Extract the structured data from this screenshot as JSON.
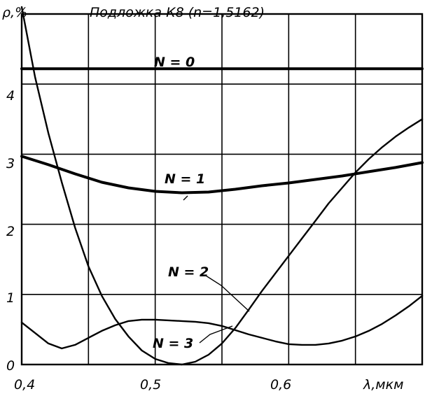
{
  "chart_data": {
    "type": "line",
    "title": "Подложка К8 (n=1,5162)",
    "ylabel": "ρ,%",
    "xlabel": "λ,мкм",
    "xlim": [
      0.4,
      0.7
    ],
    "ylim": [
      0,
      5
    ],
    "grid": true,
    "x_ticks": [
      {
        "value": 0.4,
        "label": "0,4"
      },
      {
        "value": 0.5,
        "label": "0,5"
      },
      {
        "value": 0.6,
        "label": "0,6"
      }
    ],
    "y_ticks": [
      {
        "value": 0,
        "label": "0"
      },
      {
        "value": 1,
        "label": "1"
      },
      {
        "value": 2,
        "label": "2"
      },
      {
        "value": 3,
        "label": "3"
      },
      {
        "value": 4,
        "label": "4"
      }
    ],
    "series": [
      {
        "name": "N = 0",
        "x": [
          0.4,
          0.45,
          0.5,
          0.55,
          0.6,
          0.65,
          0.7
        ],
        "y": [
          4.22,
          4.22,
          4.22,
          4.22,
          4.22,
          4.22,
          4.22
        ]
      },
      {
        "name": "N = 1",
        "x": [
          0.4,
          0.42,
          0.44,
          0.46,
          0.48,
          0.5,
          0.52,
          0.54,
          0.56,
          0.58,
          0.6,
          0.62,
          0.64,
          0.66,
          0.68,
          0.7
        ],
        "y": [
          2.97,
          2.85,
          2.72,
          2.6,
          2.52,
          2.47,
          2.45,
          2.46,
          2.5,
          2.55,
          2.59,
          2.64,
          2.69,
          2.75,
          2.81,
          2.88
        ]
      },
      {
        "name": "N = 2",
        "x": [
          0.4,
          0.41,
          0.42,
          0.43,
          0.44,
          0.45,
          0.46,
          0.47,
          0.48,
          0.49,
          0.5,
          0.51,
          0.52,
          0.53,
          0.54,
          0.55,
          0.56,
          0.57,
          0.58,
          0.59,
          0.6,
          0.61,
          0.62,
          0.63,
          0.64,
          0.65,
          0.66,
          0.67,
          0.68,
          0.69,
          0.7
        ],
        "y": [
          5.1,
          4.1,
          3.3,
          2.6,
          1.95,
          1.4,
          0.98,
          0.65,
          0.4,
          0.2,
          0.08,
          0.02,
          0.0,
          0.04,
          0.14,
          0.3,
          0.52,
          0.78,
          1.05,
          1.3,
          1.55,
          1.8,
          2.05,
          2.3,
          2.52,
          2.74,
          2.93,
          3.1,
          3.25,
          3.38,
          3.5
        ]
      },
      {
        "name": "N = 3",
        "x": [
          0.4,
          0.41,
          0.42,
          0.43,
          0.44,
          0.45,
          0.46,
          0.47,
          0.48,
          0.49,
          0.5,
          0.51,
          0.52,
          0.53,
          0.54,
          0.55,
          0.56,
          0.57,
          0.58,
          0.59,
          0.6,
          0.61,
          0.62,
          0.63,
          0.64,
          0.65,
          0.66,
          0.67,
          0.68,
          0.69,
          0.7
        ],
        "y": [
          0.6,
          0.45,
          0.3,
          0.23,
          0.28,
          0.38,
          0.48,
          0.56,
          0.62,
          0.64,
          0.64,
          0.63,
          0.62,
          0.61,
          0.59,
          0.55,
          0.49,
          0.43,
          0.38,
          0.33,
          0.29,
          0.28,
          0.28,
          0.3,
          0.34,
          0.4,
          0.48,
          0.58,
          0.7,
          0.83,
          0.98
        ]
      }
    ]
  }
}
